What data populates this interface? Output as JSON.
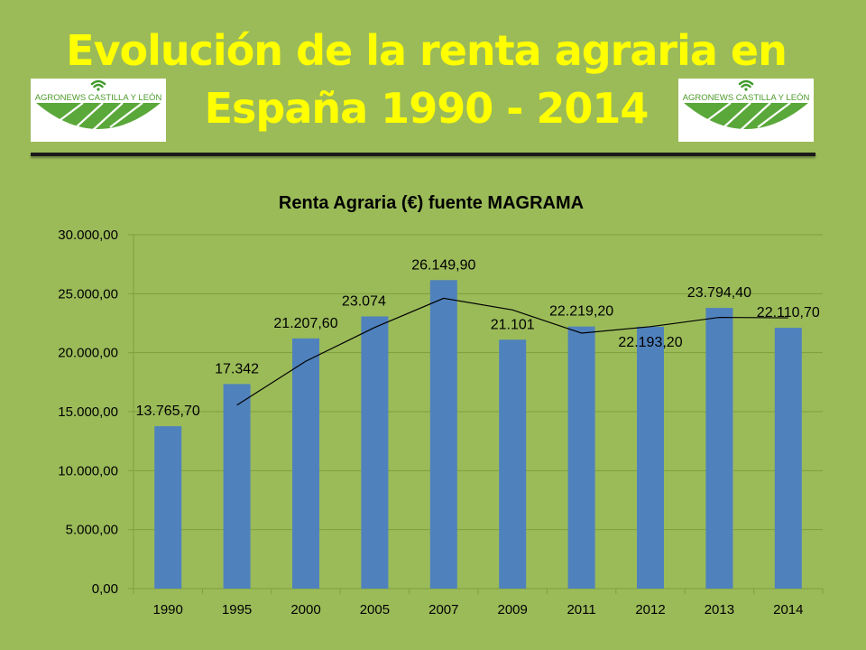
{
  "slide": {
    "title_line1": "Evolución de la renta agraria en",
    "title_line2": "España 1990 - 2014"
  },
  "logos": {
    "brand_text": "AGRONEWS CASTILLA Y LEÓN",
    "icon": "wifi-signal-icon",
    "colors": {
      "text": "#4c9a2a",
      "field": "#5aa83a",
      "signal": "#3f9a2a"
    }
  },
  "colors": {
    "background": "#9bbb59",
    "title": "#ffff00",
    "bar": "#4f81bd",
    "trendline": "#000000",
    "gridline": "#7f9f3f"
  },
  "chart_data": {
    "type": "bar",
    "title": "Renta Agraria (€) fuente MAGRAMA",
    "categories": [
      "1990",
      "1995",
      "2000",
      "2005",
      "2007",
      "2009",
      "2011",
      "2012",
      "2013",
      "2014"
    ],
    "values": [
      13765.7,
      17342,
      21207.6,
      23074,
      26149.9,
      21101,
      22219.2,
      22193.2,
      23794.4,
      22110.7
    ],
    "data_labels": [
      "13.765,70",
      "17.342",
      "21.207,60",
      "23.074",
      "26.149,90",
      "21.101",
      "22.219,20",
      "22.193,20",
      "23.794,40",
      "22.110,70"
    ],
    "y_ticks": [
      "0,00",
      "5.000,00",
      "10.000,00",
      "15.000,00",
      "20.000,00",
      "25.000,00",
      "30.000,00"
    ],
    "ylim": [
      0,
      30000
    ],
    "grid": true,
    "legend": "none",
    "trendline": {
      "type": "moving-average",
      "period": 2
    }
  }
}
